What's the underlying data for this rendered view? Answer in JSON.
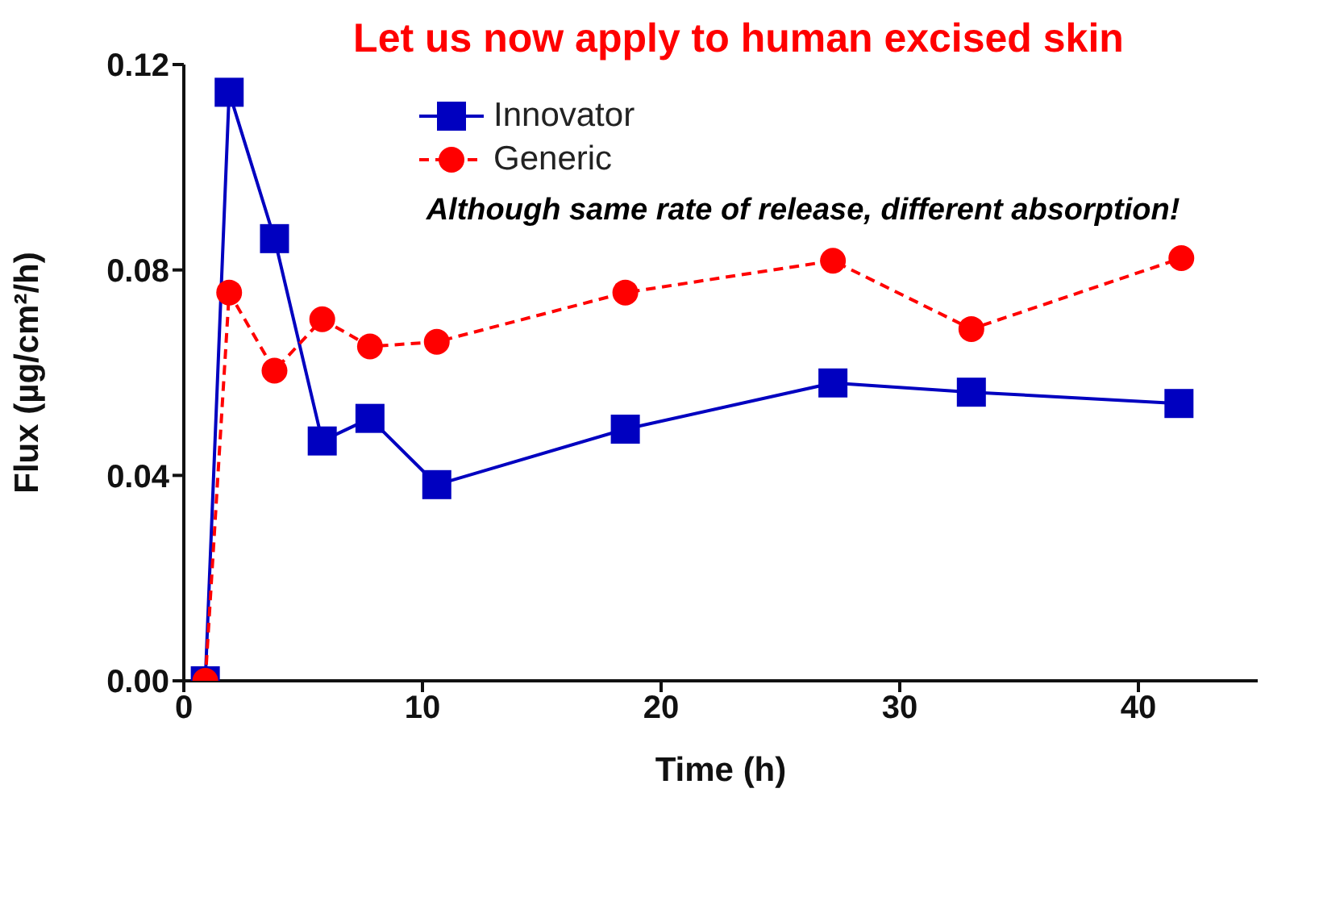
{
  "chart_data": {
    "type": "line",
    "title": "Let us now apply to human excised skin",
    "xlabel": "Time (h)",
    "ylabel": "Flux (µg/cm²/h)",
    "annotations": [
      "Although same rate of release, different absorption!"
    ],
    "xlim": [
      0,
      45
    ],
    "xticks": [
      0,
      10,
      20,
      30,
      40
    ],
    "ylim": [
      0,
      0.12
    ],
    "yticks": [
      {
        "value": 0,
        "label": "0.00"
      },
      {
        "value": 0.04,
        "label": "0.04"
      },
      {
        "value": 0.08,
        "label": "0.08"
      },
      {
        "value": 0.12,
        "label": "0.12"
      }
    ],
    "grid": false,
    "legend": "top left",
    "series": [
      {
        "name": "Innovator",
        "color": "#0000c0",
        "marker": "square",
        "line_style": "solid",
        "x": [
          0.9,
          1.9,
          3.8,
          5.8,
          7.8,
          10.6,
          18.5,
          27.2,
          33.0,
          41.7
        ],
        "values": [
          0,
          0.1146,
          0.0861,
          0.0467,
          0.0511,
          0.0382,
          0.049,
          0.058,
          0.0562,
          0.054
        ]
      },
      {
        "name": "Generic",
        "color": "#ff0000",
        "marker": "circle",
        "line_style": "dashed",
        "x": [
          0.9,
          1.9,
          3.8,
          5.8,
          7.8,
          10.6,
          18.5,
          27.2,
          33.0,
          41.8
        ],
        "values": [
          0,
          0.0756,
          0.0604,
          0.0704,
          0.0651,
          0.066,
          0.0756,
          0.0818,
          0.0685,
          0.0823
        ]
      }
    ]
  }
}
